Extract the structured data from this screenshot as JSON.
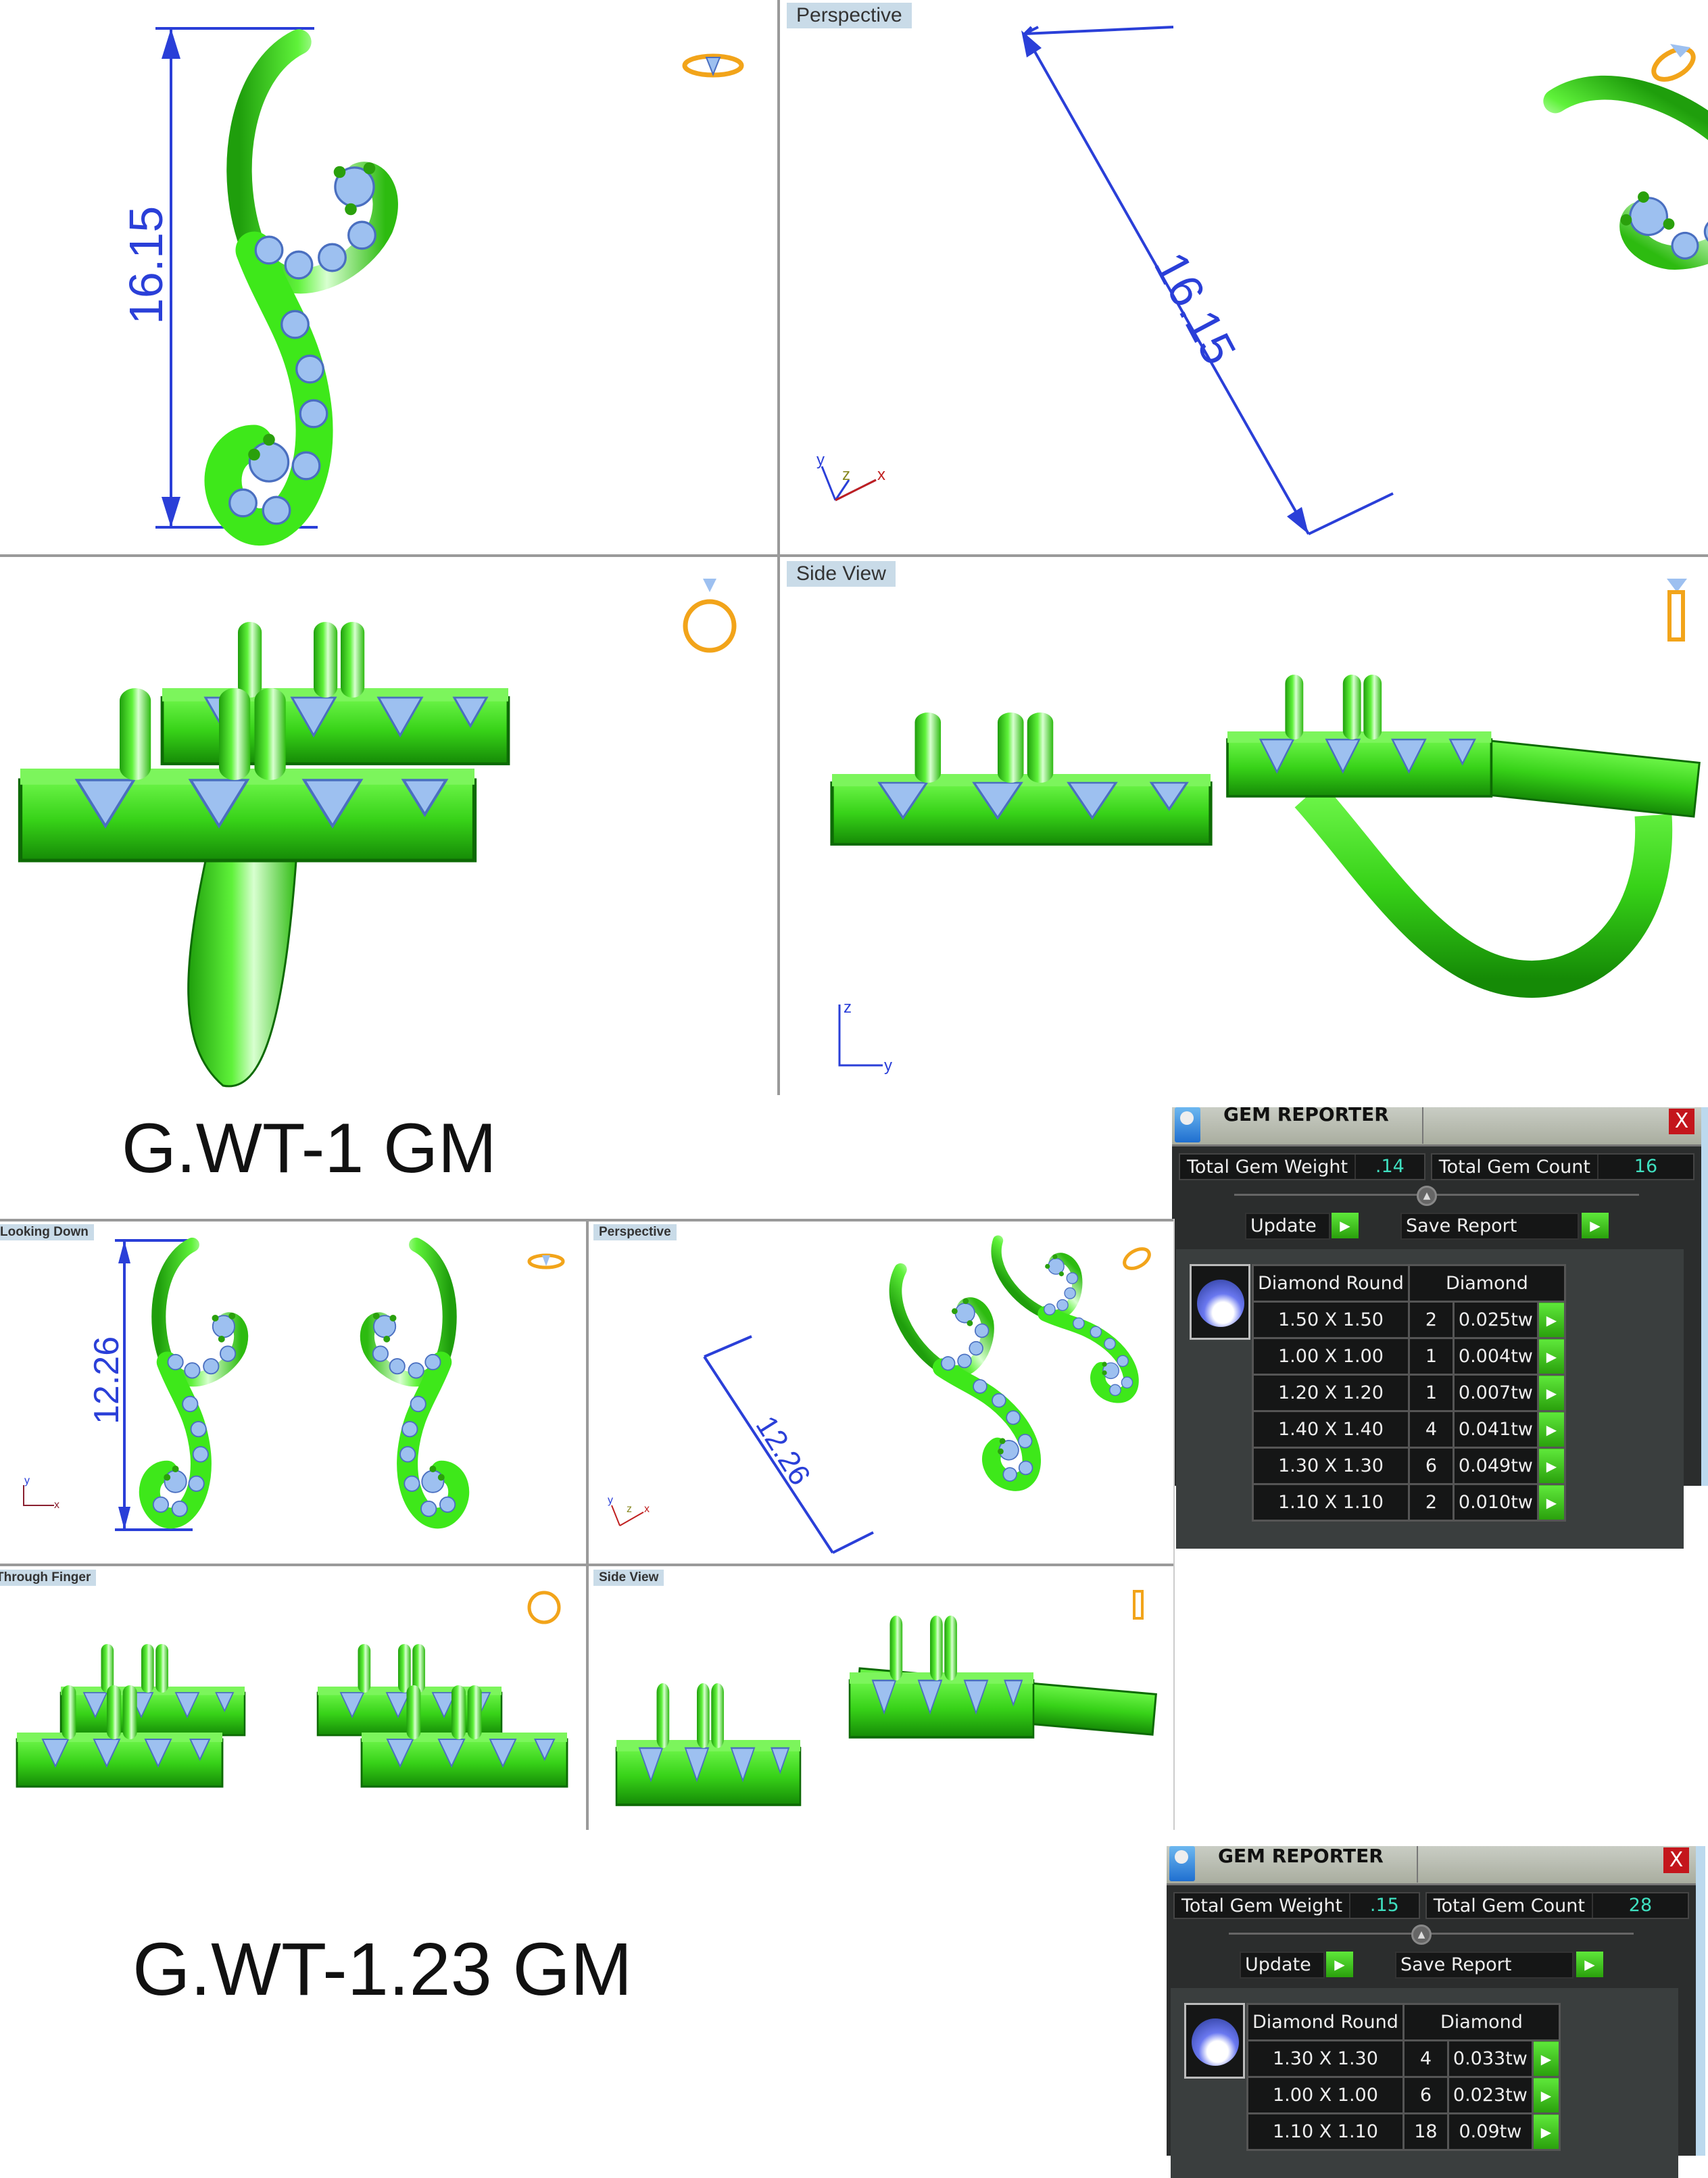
{
  "design1": {
    "weight_label": "G.WT-1 GM",
    "viewports": {
      "top_left": {
        "label": "",
        "dimension": "16.15"
      },
      "top_right": {
        "label": "Perspective",
        "dimension": "16.15"
      },
      "bottom_left": {
        "label": ""
      },
      "bottom_right": {
        "label": "Side View"
      }
    },
    "axes": {
      "perspective": [
        "y",
        "z",
        "x"
      ],
      "side": [
        "z",
        "y"
      ]
    },
    "gem_reporter": {
      "title": "GEM REPORTER",
      "close": "X",
      "total_weight_label": "Total Gem Weight",
      "total_weight": ".14",
      "total_count_label": "Total Gem Count",
      "total_count": "16",
      "update_label": "Update",
      "save_label": "Save Report",
      "header_shape": "Diamond Round",
      "header_material": "Diamond",
      "rows": [
        {
          "size": "1.50 X 1.50",
          "count": "2",
          "weight": "0.025tw"
        },
        {
          "size": "1.00 X 1.00",
          "count": "1",
          "weight": "0.004tw"
        },
        {
          "size": "1.20 X 1.20",
          "count": "1",
          "weight": "0.007tw"
        },
        {
          "size": "1.40 X 1.40",
          "count": "4",
          "weight": "0.041tw"
        },
        {
          "size": "1.30 X 1.30",
          "count": "6",
          "weight": "0.049tw"
        },
        {
          "size": "1.10 X 1.10",
          "count": "2",
          "weight": "0.010tw"
        }
      ]
    }
  },
  "design2": {
    "weight_label": "G.WT-1.23 GM",
    "viewports": {
      "top_left": {
        "label": "Looking Down",
        "dimension": "12.26"
      },
      "top_right": {
        "label": "Perspective",
        "dimension": "12.26"
      },
      "bottom_left": {
        "label": "Through Finger"
      },
      "bottom_right": {
        "label": "Side View"
      }
    },
    "axes": {
      "top": [
        "y",
        "x"
      ],
      "perspective": [
        "y",
        "z",
        "x"
      ]
    },
    "gem_reporter": {
      "title": "GEM REPORTER",
      "close": "X",
      "total_weight_label": "Total Gem Weight",
      "total_weight": ".15",
      "total_count_label": "Total Gem Count",
      "total_count": "28",
      "update_label": "Update",
      "save_label": "Save Report",
      "header_shape": "Diamond Round",
      "header_material": "Diamond",
      "rows": [
        {
          "size": "1.30 X 1.30",
          "count": "4",
          "weight": "0.033tw"
        },
        {
          "size": "1.00 X 1.00",
          "count": "6",
          "weight": "0.023tw"
        },
        {
          "size": "1.10 X 1.10",
          "count": "18",
          "weight": "0.09tw"
        }
      ]
    }
  },
  "colors": {
    "metal": "#3ee81a",
    "gem": "#9dc0f0",
    "dimension": "#2a3fd8",
    "value": "#3fe0c0"
  }
}
